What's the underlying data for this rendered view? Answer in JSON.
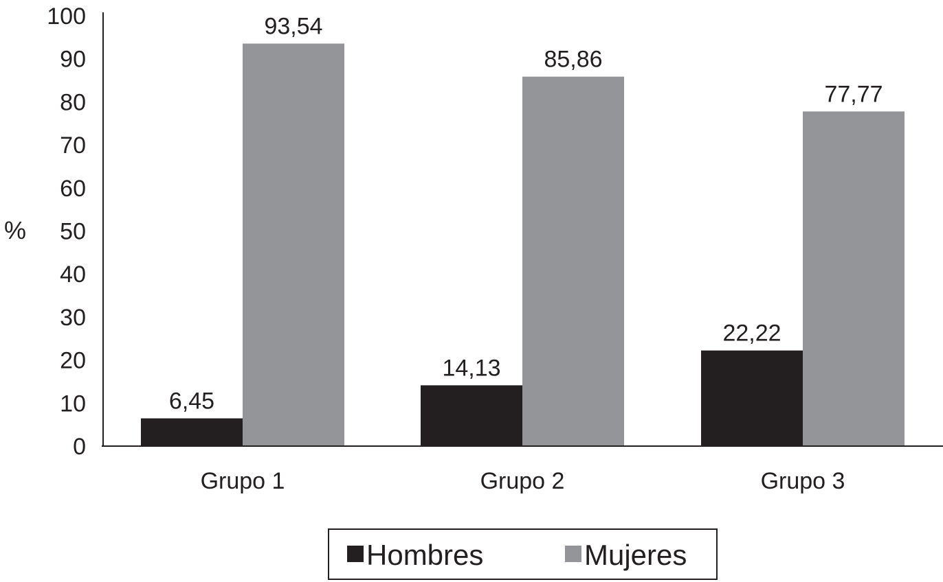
{
  "chart_data": {
    "type": "bar",
    "title": "",
    "xlabel": "",
    "ylabel": "%",
    "ylim": [
      0,
      100
    ],
    "yticks": [
      0,
      10,
      20,
      30,
      40,
      50,
      60,
      70,
      80,
      90,
      100
    ],
    "categories": [
      "Grupo 1",
      "Grupo 2",
      "Grupo 3"
    ],
    "series": [
      {
        "name": "Hombres",
        "color": "#231f20",
        "values": [
          6.45,
          14.13,
          22.22
        ],
        "labels": [
          "6,45",
          "14,13",
          "22,22"
        ]
      },
      {
        "name": "Mujeres",
        "color": "#939598",
        "values": [
          93.54,
          85.86,
          77.77
        ],
        "labels": [
          "93,54",
          "85,86",
          "77,77"
        ]
      }
    ],
    "grid": false,
    "legend_position": "bottom-center"
  }
}
